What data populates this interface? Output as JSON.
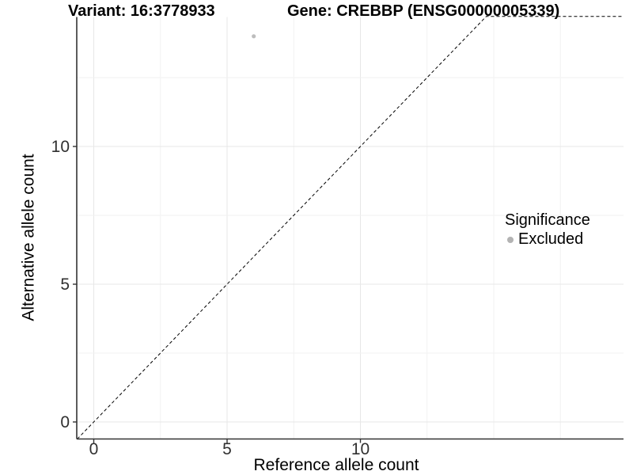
{
  "header": {
    "variant_title": "Variant: 16:3778933",
    "gene_title": "Gene: CREBBP (ENSG00000005339)"
  },
  "axes": {
    "x_title": "Reference allele count",
    "y_title": "Alternative allele count"
  },
  "legend": {
    "title": "Significance",
    "items": [
      {
        "label": "Excluded",
        "color": "#b3b3b3"
      }
    ]
  },
  "colors": {
    "point": "#bdbdbd",
    "axis_line": "#333333",
    "tick_label": "#303030",
    "grid_major": "#e7e7e7",
    "grid_minor": "#f2f2f2",
    "identity_line": "#000000",
    "background": "#ffffff"
  },
  "chart_data": {
    "type": "scatter",
    "title": "Variant: 16:3778933   Gene: CREBBP (ENSG00000005339)",
    "xlabel": "Reference allele count",
    "ylabel": "Alternative allele count",
    "x_ticks": [
      0,
      5,
      10
    ],
    "y_ticks": [
      0,
      5,
      10
    ],
    "xlim": [
      -0.64,
      19.87
    ],
    "ylim": [
      -0.62,
      14.72
    ],
    "grid": "faint major gridlines at ticks plus minor gridlines every 2.5 units",
    "legend_position": "right-center",
    "series": [
      {
        "name": "Excluded",
        "color": "#bdbdbd",
        "points": [
          {
            "x": 6,
            "y": 14
          }
        ]
      }
    ],
    "reference_line": {
      "type": "identity y=x",
      "style": "dashed black",
      "note": "clamped horizontally at ylim max (squished out-of-bounds)"
    }
  }
}
